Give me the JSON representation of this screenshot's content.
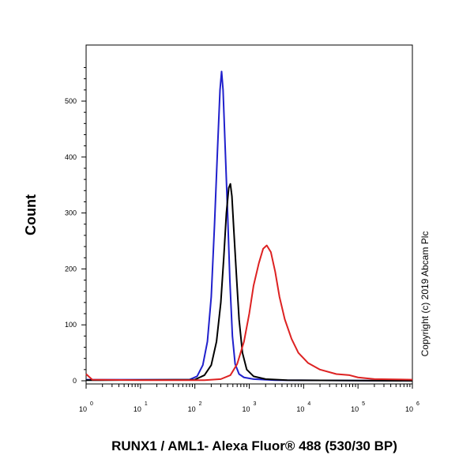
{
  "chart_data": {
    "type": "line",
    "title": "",
    "xlabel": "RUNX1 / AML1- Alexa Fluor® 488 (530/30 BP)",
    "ylabel": "Count",
    "xscale": "log",
    "xlim": [
      1,
      1000000
    ],
    "ylim": [
      0,
      570
    ],
    "grid": false,
    "legend": "none",
    "y_ticks": [
      0,
      100,
      200,
      300,
      400,
      500
    ],
    "x_ticks": [
      {
        "value": 1,
        "base": "10",
        "exp": "0"
      },
      {
        "value": 10,
        "base": "10",
        "exp": "1"
      },
      {
        "value": 100,
        "base": "10",
        "exp": "2"
      },
      {
        "value": 1000,
        "base": "10",
        "exp": "3"
      },
      {
        "value": 10000,
        "base": "10",
        "exp": "4"
      },
      {
        "value": 100000,
        "base": "10",
        "exp": "5"
      },
      {
        "value": 1000000,
        "base": "10",
        "exp": "6"
      }
    ],
    "series": [
      {
        "color": "#2020cc",
        "points": [
          [
            1,
            2
          ],
          [
            80,
            2
          ],
          [
            110,
            8
          ],
          [
            140,
            28
          ],
          [
            170,
            70
          ],
          [
            200,
            150
          ],
          [
            230,
            280
          ],
          [
            260,
            410
          ],
          [
            290,
            520
          ],
          [
            310,
            553
          ],
          [
            330,
            520
          ],
          [
            360,
            420
          ],
          [
            400,
            300
          ],
          [
            440,
            180
          ],
          [
            490,
            80
          ],
          [
            550,
            30
          ],
          [
            650,
            12
          ],
          [
            800,
            6
          ],
          [
            1200,
            3
          ],
          [
            3000,
            1
          ],
          [
            1000000,
            0
          ]
        ]
      },
      {
        "color": "#000000",
        "points": [
          [
            1,
            1
          ],
          [
            100,
            2
          ],
          [
            150,
            10
          ],
          [
            200,
            28
          ],
          [
            250,
            70
          ],
          [
            300,
            140
          ],
          [
            340,
            220
          ],
          [
            380,
            300
          ],
          [
            420,
            345
          ],
          [
            450,
            352
          ],
          [
            480,
            330
          ],
          [
            520,
            270
          ],
          [
            580,
            190
          ],
          [
            650,
            110
          ],
          [
            750,
            50
          ],
          [
            900,
            20
          ],
          [
            1200,
            8
          ],
          [
            2000,
            3
          ],
          [
            5000,
            1
          ],
          [
            1000000,
            0
          ]
        ]
      },
      {
        "color": "#dd2222",
        "points": [
          [
            1,
            12
          ],
          [
            1.3,
            2
          ],
          [
            10,
            1
          ],
          [
            150,
            1
          ],
          [
            300,
            3
          ],
          [
            450,
            10
          ],
          [
            600,
            30
          ],
          [
            800,
            70
          ],
          [
            1000,
            120
          ],
          [
            1200,
            170
          ],
          [
            1500,
            210
          ],
          [
            1800,
            236
          ],
          [
            2100,
            242
          ],
          [
            2500,
            230
          ],
          [
            3000,
            195
          ],
          [
            3600,
            150
          ],
          [
            4500,
            110
          ],
          [
            6000,
            75
          ],
          [
            8000,
            50
          ],
          [
            12000,
            32
          ],
          [
            20000,
            20
          ],
          [
            40000,
            12
          ],
          [
            70000,
            10
          ],
          [
            100000,
            6
          ],
          [
            200000,
            3
          ],
          [
            1000000,
            2
          ]
        ]
      }
    ]
  },
  "copyright": "Copyright (c) 2019 Abcam Plc"
}
